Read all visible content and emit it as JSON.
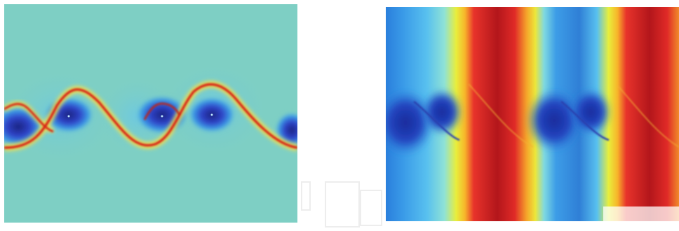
{
  "figure": {
    "panels": [
      {
        "name": "vorticity-field",
        "colormap": "jet",
        "background_color": "#7ecfc4"
      },
      {
        "name": "density-field",
        "colormap": "jet"
      }
    ]
  }
}
